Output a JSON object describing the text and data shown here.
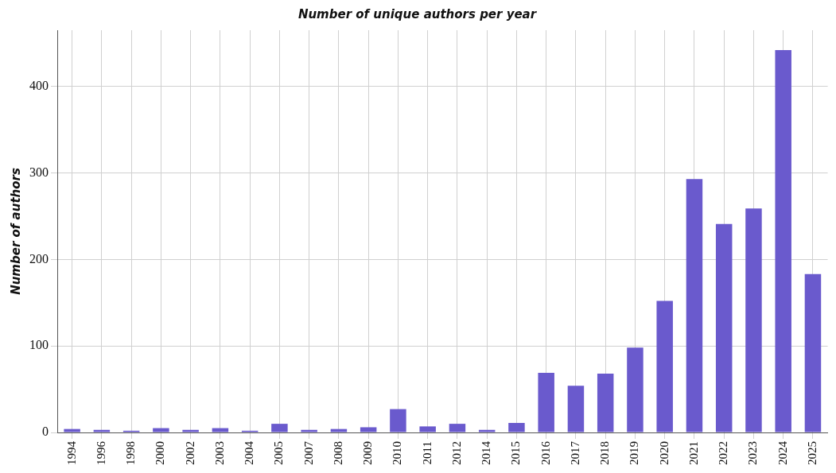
{
  "chart_data": {
    "type": "bar",
    "title": "Number of unique authors per year",
    "ylabel": "Number of authors",
    "categories": [
      "1994",
      "1996",
      "1998",
      "2000",
      "2002",
      "2003",
      "2004",
      "2005",
      "2007",
      "2008",
      "2009",
      "2010",
      "2011",
      "2012",
      "2014",
      "2015",
      "2016",
      "2017",
      "2018",
      "2019",
      "2020",
      "2021",
      "2022",
      "2023",
      "2024",
      "2025"
    ],
    "values": [
      4,
      3,
      2,
      5,
      3,
      5,
      2,
      10,
      3,
      4,
      6,
      27,
      7,
      10,
      3,
      11,
      69,
      54,
      68,
      98,
      152,
      293,
      241,
      259,
      442,
      183
    ],
    "color": "#6a5acd",
    "ylim": [
      0,
      465
    ],
    "yticks": [
      0,
      100,
      200,
      300,
      400
    ],
    "grid": true
  }
}
